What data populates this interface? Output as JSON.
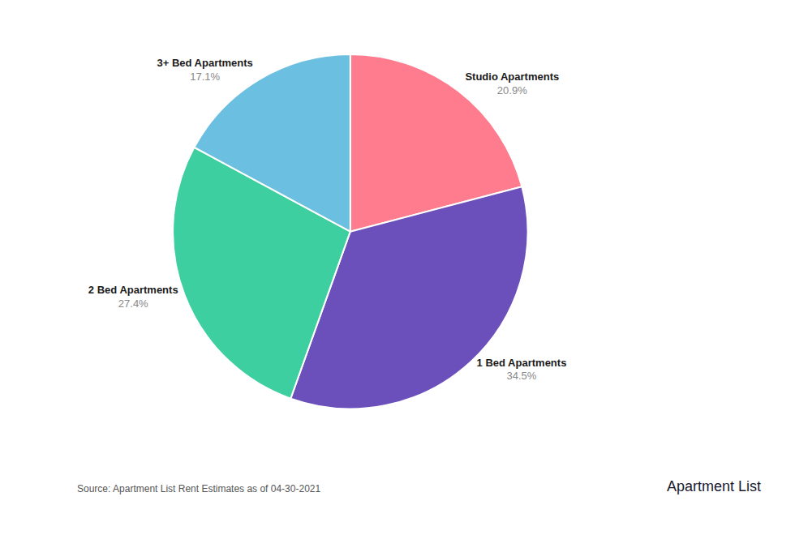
{
  "chart_data": {
    "type": "pie",
    "categories": [
      "Studio Apartments",
      "1 Bed Apartments",
      "2 Bed Apartments",
      "3+ Bed Apartments"
    ],
    "values": [
      20.9,
      34.5,
      27.4,
      17.1
    ],
    "value_labels": [
      "20.9%",
      "34.5%",
      "27.4%",
      "17.1%"
    ],
    "colors": [
      "#FF7B8E",
      "#6B4FBB",
      "#3ECFA0",
      "#6BBFE0"
    ],
    "data_labels": true,
    "legend": false,
    "annotations": [
      "Source: Apartment List Rent Estimates as of 04-30-2021",
      "Apartment",
      "List"
    ]
  }
}
